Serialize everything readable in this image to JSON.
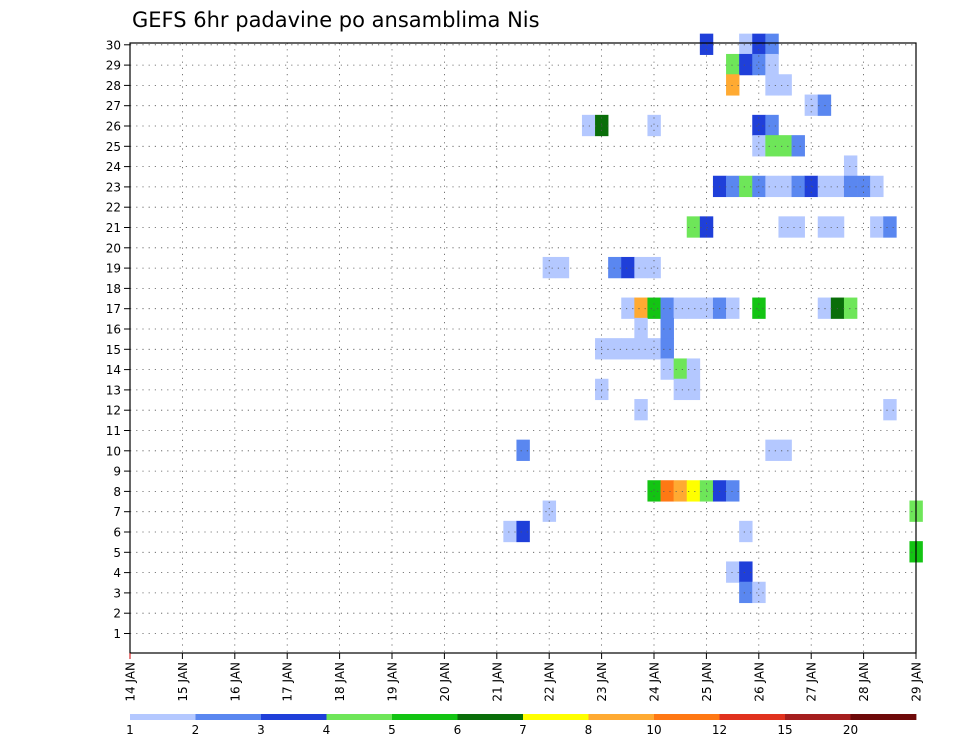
{
  "chart_data": {
    "type": "heatmap",
    "title": "GEFS 6hr padavine po ansamblima Nis",
    "x_ticks": [
      "14 JAN",
      "15 JAN",
      "16 JAN",
      "17 JAN",
      "18 JAN",
      "19 JAN",
      "20 JAN",
      "21 JAN",
      "22 JAN",
      "23 JAN",
      "24 JAN",
      "25 JAN",
      "26 JAN",
      "27 JAN",
      "28 JAN",
      "29 JAN"
    ],
    "y_ticks": [
      "1",
      "2",
      "3",
      "4",
      "5",
      "6",
      "7",
      "8",
      "9",
      "10",
      "11",
      "12",
      "13",
      "14",
      "15",
      "16",
      "17",
      "18",
      "19",
      "20",
      "21",
      "22",
      "23",
      "24",
      "25",
      "26",
      "27",
      "28",
      "29",
      "30"
    ],
    "grid": true,
    "colorbar": {
      "labels": [
        "1",
        "2",
        "3",
        "4",
        "5",
        "6",
        "7",
        "8",
        "10",
        "12",
        "15",
        "20"
      ],
      "colors": [
        "#b4c8ff",
        "#5a87f0",
        "#1f3fd9",
        "#6ee659",
        "#13c413",
        "#0a6e0a",
        "#ffff00",
        "#ffaa32",
        "#ff7814",
        "#e1321e",
        "#a51e1e",
        "#6e0a0a"
      ]
    },
    "cells": [
      {
        "member": 30,
        "day": 25.0,
        "color": "#1f3fd9"
      },
      {
        "member": 30,
        "day": 25.75,
        "color": "#b4c8ff"
      },
      {
        "member": 30,
        "day": 26.0,
        "color": "#1f3fd9"
      },
      {
        "member": 30,
        "day": 26.25,
        "color": "#5a87f0"
      },
      {
        "member": 29,
        "day": 25.5,
        "color": "#6ee659"
      },
      {
        "member": 29,
        "day": 25.75,
        "color": "#1f3fd9"
      },
      {
        "member": 29,
        "day": 26.0,
        "color": "#5a87f0"
      },
      {
        "member": 29,
        "day": 26.25,
        "color": "#b4c8ff"
      },
      {
        "member": 28,
        "day": 25.5,
        "color": "#ffaa32"
      },
      {
        "member": 28,
        "day": 26.25,
        "color": "#b4c8ff"
      },
      {
        "member": 28,
        "day": 26.5,
        "color": "#b4c8ff"
      },
      {
        "member": 27,
        "day": 27.0,
        "color": "#b4c8ff"
      },
      {
        "member": 27,
        "day": 27.25,
        "color": "#5a87f0"
      },
      {
        "member": 26,
        "day": 22.75,
        "color": "#b4c8ff"
      },
      {
        "member": 26,
        "day": 23.0,
        "color": "#0a6e0a"
      },
      {
        "member": 26,
        "day": 24.0,
        "color": "#b4c8ff"
      },
      {
        "member": 26,
        "day": 26.0,
        "color": "#1f3fd9"
      },
      {
        "member": 26,
        "day": 26.25,
        "color": "#5a87f0"
      },
      {
        "member": 25,
        "day": 26.0,
        "color": "#b4c8ff"
      },
      {
        "member": 25,
        "day": 26.25,
        "color": "#6ee659"
      },
      {
        "member": 25,
        "day": 26.5,
        "color": "#6ee659"
      },
      {
        "member": 25,
        "day": 26.75,
        "color": "#5a87f0"
      },
      {
        "member": 24,
        "day": 27.75,
        "color": "#b4c8ff"
      },
      {
        "member": 23,
        "day": 25.25,
        "color": "#1f3fd9"
      },
      {
        "member": 23,
        "day": 25.5,
        "color": "#5a87f0"
      },
      {
        "member": 23,
        "day": 25.75,
        "color": "#6ee659"
      },
      {
        "member": 23,
        "day": 26.0,
        "color": "#5a87f0"
      },
      {
        "member": 23,
        "day": 26.25,
        "color": "#b4c8ff"
      },
      {
        "member": 23,
        "day": 26.5,
        "color": "#b4c8ff"
      },
      {
        "member": 23,
        "day": 26.75,
        "color": "#5a87f0"
      },
      {
        "member": 23,
        "day": 27.0,
        "color": "#1f3fd9"
      },
      {
        "member": 23,
        "day": 27.25,
        "color": "#b4c8ff"
      },
      {
        "member": 23,
        "day": 27.5,
        "color": "#b4c8ff"
      },
      {
        "member": 23,
        "day": 27.75,
        "color": "#5a87f0"
      },
      {
        "member": 23,
        "day": 28.0,
        "color": "#5a87f0"
      },
      {
        "member": 23,
        "day": 28.25,
        "color": "#b4c8ff"
      },
      {
        "member": 21,
        "day": 24.75,
        "color": "#6ee659"
      },
      {
        "member": 21,
        "day": 25.0,
        "color": "#1f3fd9"
      },
      {
        "member": 21,
        "day": 26.5,
        "color": "#b4c8ff"
      },
      {
        "member": 21,
        "day": 26.75,
        "color": "#b4c8ff"
      },
      {
        "member": 21,
        "day": 27.25,
        "color": "#b4c8ff"
      },
      {
        "member": 21,
        "day": 27.5,
        "color": "#b4c8ff"
      },
      {
        "member": 21,
        "day": 28.25,
        "color": "#b4c8ff"
      },
      {
        "member": 21,
        "day": 28.5,
        "color": "#5a87f0"
      },
      {
        "member": 19,
        "day": 22.0,
        "color": "#b4c8ff"
      },
      {
        "member": 19,
        "day": 22.25,
        "color": "#b4c8ff"
      },
      {
        "member": 19,
        "day": 23.25,
        "color": "#5a87f0"
      },
      {
        "member": 19,
        "day": 23.5,
        "color": "#1f3fd9"
      },
      {
        "member": 19,
        "day": 23.75,
        "color": "#b4c8ff"
      },
      {
        "member": 19,
        "day": 24.0,
        "color": "#b4c8ff"
      },
      {
        "member": 17,
        "day": 23.5,
        "color": "#b4c8ff"
      },
      {
        "member": 17,
        "day": 23.75,
        "color": "#ffaa32"
      },
      {
        "member": 17,
        "day": 24.0,
        "color": "#13c413"
      },
      {
        "member": 17,
        "day": 24.25,
        "color": "#5a87f0"
      },
      {
        "member": 17,
        "day": 24.5,
        "color": "#b4c8ff"
      },
      {
        "member": 17,
        "day": 24.75,
        "color": "#b4c8ff"
      },
      {
        "member": 17,
        "day": 25.0,
        "color": "#b4c8ff"
      },
      {
        "member": 17,
        "day": 25.25,
        "color": "#5a87f0"
      },
      {
        "member": 17,
        "day": 25.5,
        "color": "#b4c8ff"
      },
      {
        "member": 17,
        "day": 26.0,
        "color": "#13c413"
      },
      {
        "member": 17,
        "day": 27.25,
        "color": "#b4c8ff"
      },
      {
        "member": 17,
        "day": 27.5,
        "color": "#0a6e0a"
      },
      {
        "member": 17,
        "day": 27.75,
        "color": "#6ee659"
      },
      {
        "member": 16,
        "day": 23.75,
        "color": "#b4c8ff"
      },
      {
        "member": 16,
        "day": 24.25,
        "color": "#5a87f0"
      },
      {
        "member": 15,
        "day": 23.0,
        "color": "#b4c8ff"
      },
      {
        "member": 15,
        "day": 23.25,
        "color": "#b4c8ff"
      },
      {
        "member": 15,
        "day": 23.5,
        "color": "#b4c8ff"
      },
      {
        "member": 15,
        "day": 23.75,
        "color": "#b4c8ff"
      },
      {
        "member": 15,
        "day": 24.0,
        "color": "#b4c8ff"
      },
      {
        "member": 15,
        "day": 24.25,
        "color": "#5a87f0"
      },
      {
        "member": 14,
        "day": 24.25,
        "color": "#b4c8ff"
      },
      {
        "member": 14,
        "day": 24.5,
        "color": "#6ee659"
      },
      {
        "member": 14,
        "day": 24.75,
        "color": "#b4c8ff"
      },
      {
        "member": 13,
        "day": 23.0,
        "color": "#b4c8ff"
      },
      {
        "member": 13,
        "day": 24.5,
        "color": "#b4c8ff"
      },
      {
        "member": 13,
        "day": 24.75,
        "color": "#b4c8ff"
      },
      {
        "member": 12,
        "day": 23.75,
        "color": "#b4c8ff"
      },
      {
        "member": 12,
        "day": 28.5,
        "color": "#b4c8ff"
      },
      {
        "member": 10,
        "day": 21.5,
        "color": "#5a87f0"
      },
      {
        "member": 10,
        "day": 26.25,
        "color": "#b4c8ff"
      },
      {
        "member": 10,
        "day": 26.5,
        "color": "#b4c8ff"
      },
      {
        "member": 8,
        "day": 24.0,
        "color": "#13c413"
      },
      {
        "member": 8,
        "day": 24.25,
        "color": "#ff7814"
      },
      {
        "member": 8,
        "day": 24.5,
        "color": "#ffaa32"
      },
      {
        "member": 8,
        "day": 24.75,
        "color": "#ffff00"
      },
      {
        "member": 8,
        "day": 25.0,
        "color": "#6ee659"
      },
      {
        "member": 8,
        "day": 25.25,
        "color": "#1f3fd9"
      },
      {
        "member": 8,
        "day": 25.5,
        "color": "#5a87f0"
      },
      {
        "member": 7,
        "day": 22.0,
        "color": "#b4c8ff"
      },
      {
        "member": 7,
        "day": 29.0,
        "color": "#6ee659"
      },
      {
        "member": 6,
        "day": 21.25,
        "color": "#b4c8ff"
      },
      {
        "member": 6,
        "day": 21.5,
        "color": "#1f3fd9"
      },
      {
        "member": 6,
        "day": 25.75,
        "color": "#b4c8ff"
      },
      {
        "member": 5,
        "day": 29.0,
        "color": "#13c413"
      },
      {
        "member": 4,
        "day": 25.5,
        "color": "#b4c8ff"
      },
      {
        "member": 4,
        "day": 25.75,
        "color": "#1f3fd9"
      },
      {
        "member": 3,
        "day": 25.75,
        "color": "#5a87f0"
      },
      {
        "member": 3,
        "day": 26.0,
        "color": "#b4c8ff"
      }
    ]
  }
}
